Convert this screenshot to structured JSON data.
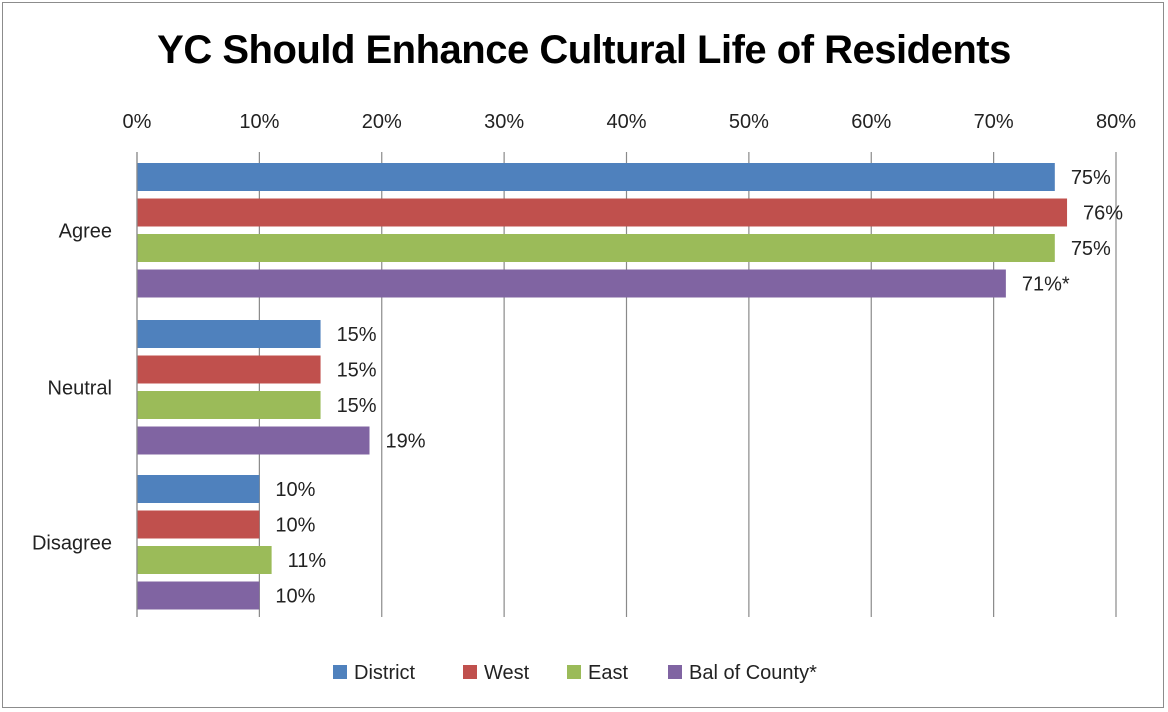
{
  "chart_data": {
    "type": "bar",
    "orientation": "horizontal",
    "title": "YC Should Enhance Cultural Life of Residents",
    "categories": [
      "Agree",
      "Neutral",
      "Disagree"
    ],
    "series": [
      {
        "name": "District",
        "color": "#4f81bd",
        "values": [
          75,
          15,
          10
        ],
        "labels": [
          "75%",
          "15%",
          "10%"
        ]
      },
      {
        "name": "West",
        "color": "#c0504d",
        "values": [
          76,
          15,
          10
        ],
        "labels": [
          "76%",
          "15%",
          "10%"
        ]
      },
      {
        "name": "East",
        "color": "#9bbb59",
        "values": [
          75,
          15,
          11
        ],
        "labels": [
          "75%",
          "15%",
          "11%"
        ]
      },
      {
        "name": "Bal of County*",
        "color": "#8064a2",
        "values": [
          71,
          19,
          10
        ],
        "labels": [
          "71%*",
          "19%",
          "10%"
        ]
      }
    ],
    "xlim": [
      0,
      80
    ],
    "xticks": [
      0,
      10,
      20,
      30,
      40,
      50,
      60,
      70,
      80
    ],
    "xtick_labels": [
      "0%",
      "10%",
      "20%",
      "30%",
      "40%",
      "50%",
      "60%",
      "70%",
      "80%"
    ],
    "x_axis_position": "top",
    "grid": true,
    "legend_position": "bottom"
  }
}
